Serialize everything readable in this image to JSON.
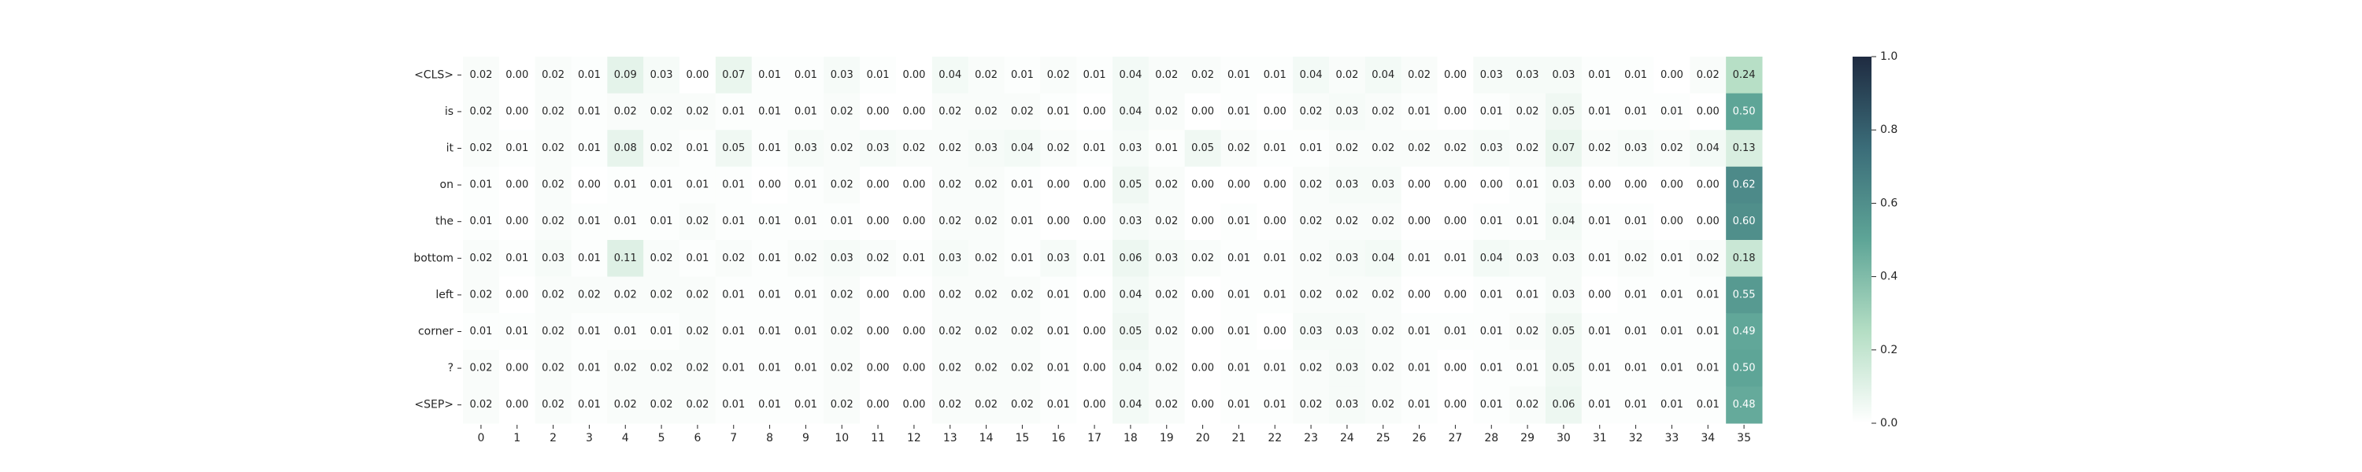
{
  "chart_data": {
    "type": "heatmap",
    "title": "",
    "xlabel": "",
    "ylabel": "",
    "rows": [
      "<CLS>",
      "is",
      "it",
      "on",
      "the",
      "bottom",
      "left",
      "corner",
      "?",
      "<SEP>"
    ],
    "columns": [
      "0",
      "1",
      "2",
      "3",
      "4",
      "5",
      "6",
      "7",
      "8",
      "9",
      "10",
      "11",
      "12",
      "13",
      "14",
      "15",
      "16",
      "17",
      "18",
      "19",
      "20",
      "21",
      "22",
      "23",
      "24",
      "25",
      "26",
      "27",
      "28",
      "29",
      "30",
      "31",
      "32",
      "33",
      "34",
      "35"
    ],
    "values": [
      [
        0.02,
        0.0,
        0.02,
        0.01,
        0.09,
        0.03,
        0.0,
        0.07,
        0.01,
        0.01,
        0.03,
        0.01,
        0.0,
        0.04,
        0.02,
        0.01,
        0.02,
        0.01,
        0.04,
        0.02,
        0.02,
        0.01,
        0.01,
        0.04,
        0.02,
        0.04,
        0.02,
        0.0,
        0.03,
        0.03,
        0.03,
        0.01,
        0.01,
        0.0,
        0.02,
        0.24
      ],
      [
        0.02,
        0.0,
        0.02,
        0.01,
        0.02,
        0.02,
        0.02,
        0.01,
        0.01,
        0.01,
        0.02,
        0.0,
        0.0,
        0.02,
        0.02,
        0.02,
        0.01,
        0.0,
        0.04,
        0.02,
        0.0,
        0.01,
        0.0,
        0.02,
        0.03,
        0.02,
        0.01,
        0.0,
        0.01,
        0.02,
        0.05,
        0.01,
        0.01,
        0.01,
        0.0,
        0.5
      ],
      [
        0.02,
        0.01,
        0.02,
        0.01,
        0.08,
        0.02,
        0.01,
        0.05,
        0.01,
        0.03,
        0.02,
        0.03,
        0.02,
        0.02,
        0.03,
        0.04,
        0.02,
        0.01,
        0.03,
        0.01,
        0.05,
        0.02,
        0.01,
        0.01,
        0.02,
        0.02,
        0.02,
        0.02,
        0.03,
        0.02,
        0.07,
        0.02,
        0.03,
        0.02,
        0.04,
        0.13
      ],
      [
        0.01,
        0.0,
        0.02,
        0.0,
        0.01,
        0.01,
        0.01,
        0.01,
        0.0,
        0.01,
        0.02,
        0.0,
        0.0,
        0.02,
        0.02,
        0.01,
        0.0,
        0.0,
        0.05,
        0.02,
        0.0,
        0.0,
        0.0,
        0.02,
        0.03,
        0.03,
        0.0,
        0.0,
        0.0,
        0.01,
        0.03,
        0.0,
        0.0,
        0.0,
        0.0,
        0.62
      ],
      [
        0.01,
        0.0,
        0.02,
        0.01,
        0.01,
        0.01,
        0.02,
        0.01,
        0.01,
        0.01,
        0.01,
        0.0,
        0.0,
        0.02,
        0.02,
        0.01,
        0.0,
        0.0,
        0.03,
        0.02,
        0.0,
        0.01,
        0.0,
        0.02,
        0.02,
        0.02,
        0.0,
        0.0,
        0.01,
        0.01,
        0.04,
        0.01,
        0.01,
        0.0,
        0.0,
        0.6
      ],
      [
        0.02,
        0.01,
        0.03,
        0.01,
        0.11,
        0.02,
        0.01,
        0.02,
        0.01,
        0.02,
        0.03,
        0.02,
        0.01,
        0.03,
        0.02,
        0.01,
        0.03,
        0.01,
        0.06,
        0.03,
        0.02,
        0.01,
        0.01,
        0.02,
        0.03,
        0.04,
        0.01,
        0.01,
        0.04,
        0.03,
        0.03,
        0.01,
        0.02,
        0.01,
        0.02,
        0.18
      ],
      [
        0.02,
        0.0,
        0.02,
        0.02,
        0.02,
        0.02,
        0.02,
        0.01,
        0.01,
        0.01,
        0.02,
        0.0,
        0.0,
        0.02,
        0.02,
        0.02,
        0.01,
        0.0,
        0.04,
        0.02,
        0.0,
        0.01,
        0.01,
        0.02,
        0.02,
        0.02,
        0.0,
        0.0,
        0.01,
        0.01,
        0.03,
        0.0,
        0.01,
        0.01,
        0.01,
        0.55
      ],
      [
        0.01,
        0.01,
        0.02,
        0.01,
        0.01,
        0.01,
        0.02,
        0.01,
        0.01,
        0.01,
        0.02,
        0.0,
        0.0,
        0.02,
        0.02,
        0.02,
        0.01,
        0.0,
        0.05,
        0.02,
        0.0,
        0.01,
        0.0,
        0.03,
        0.03,
        0.02,
        0.01,
        0.01,
        0.01,
        0.02,
        0.05,
        0.01,
        0.01,
        0.01,
        0.01,
        0.49
      ],
      [
        0.02,
        0.0,
        0.02,
        0.01,
        0.02,
        0.02,
        0.02,
        0.01,
        0.01,
        0.01,
        0.02,
        0.0,
        0.0,
        0.02,
        0.02,
        0.02,
        0.01,
        0.0,
        0.04,
        0.02,
        0.0,
        0.01,
        0.01,
        0.02,
        0.03,
        0.02,
        0.01,
        0.0,
        0.01,
        0.01,
        0.05,
        0.01,
        0.01,
        0.01,
        0.01,
        0.5
      ],
      [
        0.02,
        0.0,
        0.02,
        0.01,
        0.02,
        0.02,
        0.02,
        0.01,
        0.01,
        0.01,
        0.02,
        0.0,
        0.0,
        0.02,
        0.02,
        0.02,
        0.01,
        0.0,
        0.04,
        0.02,
        0.0,
        0.01,
        0.01,
        0.02,
        0.03,
        0.02,
        0.01,
        0.0,
        0.01,
        0.02,
        0.06,
        0.01,
        0.01,
        0.01,
        0.01,
        0.48
      ]
    ],
    "value_format": "2 decimals",
    "colorbar": {
      "range": [
        0.0,
        1.0
      ],
      "ticks": [
        "0.0",
        "0.2",
        "0.4",
        "0.6",
        "0.8",
        "1.0"
      ],
      "colors": [
        "#ffffff",
        "#b4dec4",
        "#5ea597",
        "#3b6d79",
        "#1f2b41"
      ]
    },
    "text_color_light": "#ffffff",
    "text_color_dark": "#262626",
    "grid": false
  }
}
